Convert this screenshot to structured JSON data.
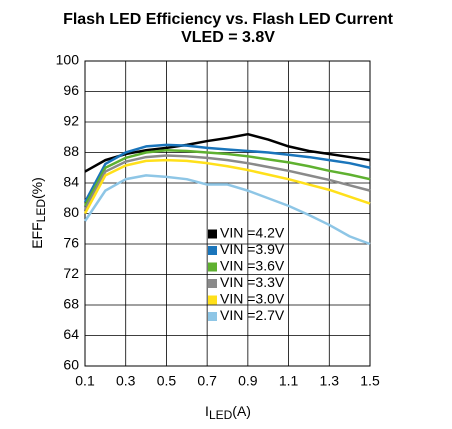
{
  "chart_data": {
    "type": "line",
    "title": "Flash LED Efficiency vs. Flash LED Current",
    "subtitle": "VLED = 3.8V",
    "ylabel": [
      "EFF",
      "LED",
      "(%)"
    ],
    "xlabel": [
      "I",
      "LED",
      "(A)"
    ],
    "x": [
      0.1,
      0.2,
      0.3,
      0.4,
      0.5,
      0.6,
      0.7,
      0.8,
      0.9,
      1.0,
      1.1,
      1.2,
      1.3,
      1.4,
      1.5
    ],
    "series": [
      {
        "name": "VIN =4.2V",
        "color": "#000000",
        "values": [
          85.5,
          87,
          87.8,
          88.3,
          88.6,
          89,
          89.5,
          89.9,
          90.4,
          89.7,
          88.8,
          88.2,
          87.8,
          87.4,
          87
        ]
      },
      {
        "name": "VIN =3.9V",
        "color": "#1a75bb",
        "values": [
          81.5,
          86.5,
          88,
          88.8,
          89,
          88.9,
          88.6,
          88.4,
          88.2,
          88,
          87.7,
          87.4,
          87,
          86.6,
          86
        ]
      },
      {
        "name": "VIN =3.6V",
        "color": "#5fb130",
        "values": [
          81,
          86,
          87.3,
          88,
          88.3,
          88.2,
          88,
          87.8,
          87.5,
          87.1,
          86.7,
          86.2,
          85.6,
          85.1,
          84.5
        ]
      },
      {
        "name": "VIN =3.3V",
        "color": "#8a8a8a",
        "values": [
          80.5,
          85.5,
          86.8,
          87.4,
          87.6,
          87.5,
          87.3,
          87,
          86.6,
          86.1,
          85.6,
          85,
          84.4,
          83.7,
          83
        ]
      },
      {
        "name": "VIN =3.0V",
        "color": "#ffe01a",
        "values": [
          80,
          85,
          86.3,
          86.9,
          87,
          86.9,
          86.6,
          86.2,
          85.7,
          85.1,
          84.5,
          83.8,
          83.1,
          82.2,
          81.3
        ]
      },
      {
        "name": "VIN =2.7V",
        "color": "#8ec6e6",
        "values": [
          79,
          83,
          84.5,
          85,
          84.8,
          84.5,
          83.8,
          83.8,
          83,
          82,
          81,
          79.8,
          78.5,
          77,
          76
        ]
      }
    ],
    "xlim": [
      0.1,
      1.5
    ],
    "xticks": [
      0.1,
      0.3,
      0.5,
      0.7,
      0.9,
      1.1,
      1.3,
      1.5
    ],
    "ylim": [
      60,
      100
    ],
    "yticks": [
      60,
      64,
      68,
      72,
      76,
      80,
      84,
      88,
      92,
      96,
      100
    ],
    "grid": true
  }
}
